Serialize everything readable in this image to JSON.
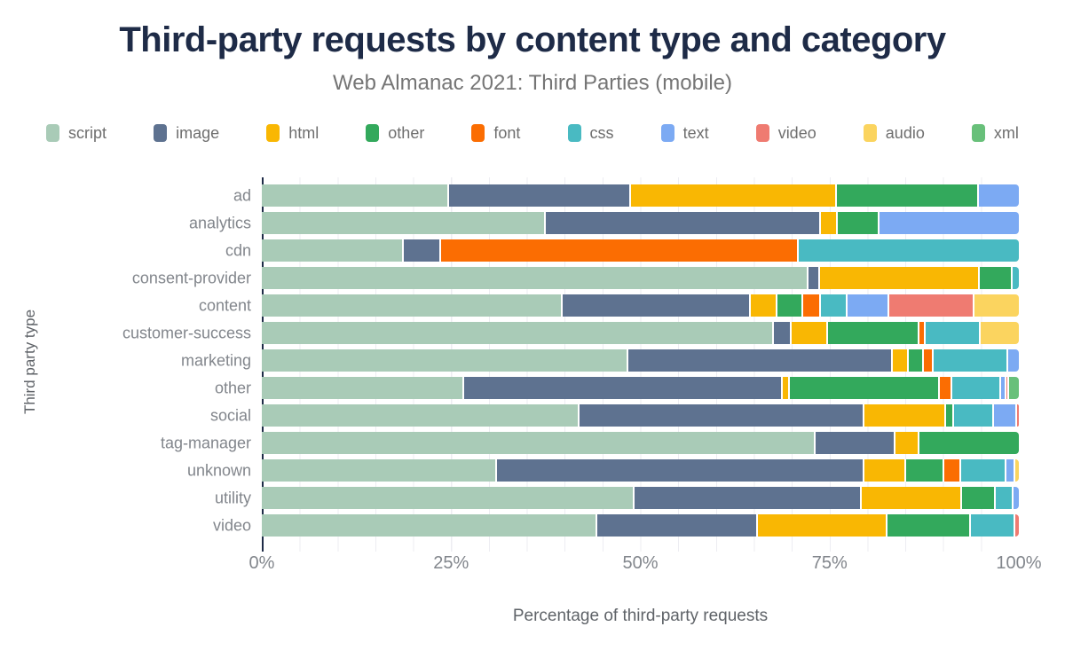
{
  "page": {
    "background": "#ffffff"
  },
  "chart_data": {
    "type": "bar",
    "variant": "horizontal-stacked",
    "title": "Third-party requests by content type and category",
    "subtitle": "Web Almanac 2021: Third Parties (mobile)",
    "xlabel": "Percentage of third-party requests",
    "ylabel": "Third party type",
    "xlim": [
      0,
      100
    ],
    "units": "percent",
    "grid": "minor vertical gridlines every 5%",
    "legend_position": "top",
    "axis_color": "#1e2b47",
    "x_ticks": [
      {
        "value": 0,
        "label": "0%"
      },
      {
        "value": 25,
        "label": "25%"
      },
      {
        "value": 50,
        "label": "50%"
      },
      {
        "value": 75,
        "label": "75%"
      },
      {
        "value": 100,
        "label": "100%"
      }
    ],
    "categories": [
      "ad",
      "analytics",
      "cdn",
      "consent-provider",
      "content",
      "customer-success",
      "marketing",
      "other",
      "social",
      "tag-manager",
      "unknown",
      "utility",
      "video"
    ],
    "series": [
      {
        "name": "script",
        "color": "#a9cbb7",
        "values": [
          24.7,
          37.5,
          18.8,
          72.2,
          39.7,
          67.7,
          48.4,
          26.7,
          42.0,
          73.2,
          31.1,
          49.2,
          44.3
        ]
      },
      {
        "name": "image",
        "color": "#5e7290",
        "values": [
          24.1,
          36.3,
          4.9,
          1.5,
          24.9,
          2.3,
          35.0,
          42.1,
          37.6,
          10.5,
          48.5,
          30.1,
          21.2
        ]
      },
      {
        "name": "html",
        "color": "#f9b703",
        "values": [
          27.2,
          2.3,
          0,
          21.1,
          3.5,
          4.8,
          2.1,
          1.0,
          10.8,
          3.2,
          5.5,
          13.2,
          17.2
        ]
      },
      {
        "name": "other",
        "color": "#33a95c",
        "values": [
          18.7,
          5.5,
          0,
          4.4,
          3.4,
          12.1,
          2.0,
          19.8,
          1.1,
          13.1,
          5.1,
          4.5,
          11.0
        ]
      },
      {
        "name": "font",
        "color": "#fb6d02",
        "values": [
          0,
          0,
          47.2,
          0,
          2.4,
          0.8,
          1.2,
          1.6,
          0,
          0,
          2.2,
          0,
          0
        ]
      },
      {
        "name": "css",
        "color": "#49bac2",
        "values": [
          0,
          0,
          29.1,
          0.8,
          3.5,
          7.3,
          9.9,
          6.5,
          5.2,
          0,
          6.0,
          2.3,
          5.8
        ]
      },
      {
        "name": "text",
        "color": "#7caaf3",
        "values": [
          5.3,
          18.4,
          0,
          0,
          5.5,
          0,
          1.4,
          0.7,
          3.1,
          0,
          1.1,
          0.7,
          0
        ]
      },
      {
        "name": "video",
        "color": "#ef7b71",
        "values": [
          0,
          0,
          0,
          0,
          11.3,
          0,
          0,
          0.3,
          0.2,
          0,
          0,
          0,
          0.5
        ]
      },
      {
        "name": "audio",
        "color": "#fbd45f",
        "values": [
          0,
          0,
          0,
          0,
          5.8,
          5.0,
          0,
          0,
          0,
          0,
          0.5,
          0,
          0
        ]
      },
      {
        "name": "xml",
        "color": "#68c07a",
        "values": [
          0,
          0,
          0,
          0,
          0,
          0,
          0,
          1.3,
          0,
          0,
          0,
          0,
          0
        ]
      }
    ]
  }
}
